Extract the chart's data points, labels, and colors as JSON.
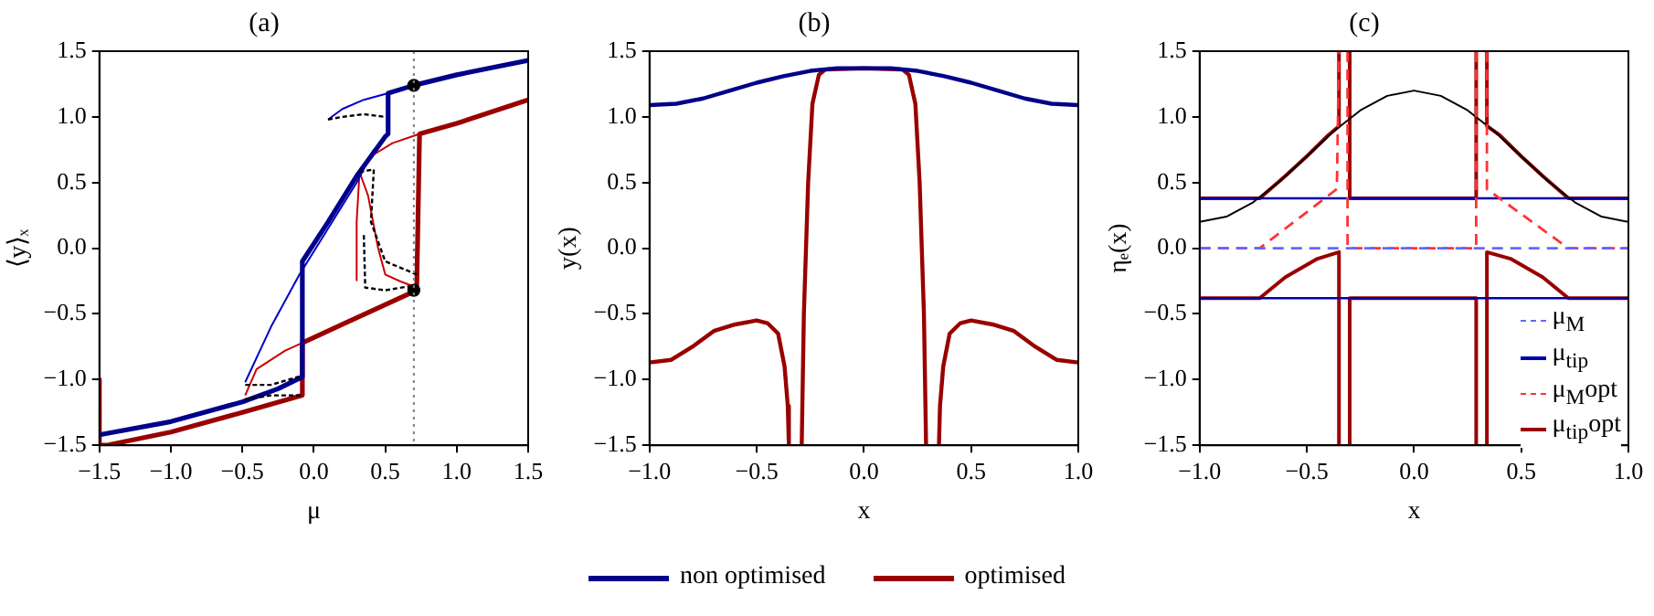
{
  "chart_data": [
    {
      "type": "line",
      "title": "(a)",
      "xlabel": "μ",
      "ylabel": "⟨y⟩ₓ",
      "xlim": [
        -1.5,
        1.5
      ],
      "ylim": [
        -1.5,
        1.5
      ],
      "xticks": [
        {
          "value": -1.5,
          "label": "−1.5"
        },
        {
          "value": -1,
          "label": "−1.0"
        },
        {
          "value": -0.5,
          "label": "−0.5"
        },
        {
          "value": 0,
          "label": "0.0"
        },
        {
          "value": 0.5,
          "label": "0.5"
        },
        {
          "value": 1,
          "label": "1.0"
        },
        {
          "value": 1.5,
          "label": "1.5"
        }
      ],
      "yticks": [
        {
          "value": -1.5,
          "label": "−1.5"
        },
        {
          "value": -1,
          "label": "−1.0"
        },
        {
          "value": -0.5,
          "label": "−0.5"
        },
        {
          "value": 0,
          "label": "0.0"
        },
        {
          "value": 0.5,
          "label": "0.5"
        },
        {
          "value": 1,
          "label": "1.0"
        },
        {
          "value": 1.5,
          "label": "1.5"
        }
      ],
      "legend": "bottom",
      "ref_lines": [
        {
          "axis": "x",
          "value": 0.7,
          "color": "#808080",
          "line_style": "dotted"
        }
      ],
      "series": [
        {
          "type": "scatter",
          "marker": "circle",
          "color": "#000000",
          "x": [
            0.7,
            0.7
          ],
          "values": [
            1.24,
            -0.32
          ]
        },
        {
          "name": "non optimised",
          "color": "#00008b",
          "x": [
            -1.5,
            -1.0,
            -0.5,
            -0.25,
            -0.08,
            -0.08,
            0.1,
            0.3,
            0.5,
            0.52,
            0.52,
            0.7,
            1.0,
            1.5
          ],
          "values": [
            -1.42,
            -1.32,
            -1.17,
            -1.07,
            -0.98,
            -0.1,
            0.2,
            0.55,
            0.85,
            0.87,
            1.18,
            1.24,
            1.32,
            1.43
          ]
        },
        {
          "name": "optimised",
          "color": "#990000",
          "x": [
            -1.5,
            -1.5,
            -1.45,
            -1.0,
            -0.5,
            -0.08,
            -0.08,
            0.2,
            0.5,
            0.72,
            0.74,
            1.0,
            1.5
          ],
          "values": [
            -1.0,
            -1.5,
            -1.5,
            -1.4,
            -1.25,
            -1.12,
            -0.72,
            -0.58,
            -0.43,
            -0.32,
            0.87,
            0.95,
            1.13
          ]
        },
        {
          "color": "#0000cc",
          "x": [
            -0.48,
            -0.3,
            -0.1,
            0.1,
            0.3,
            0.42
          ],
          "values": [
            -1.02,
            -0.6,
            -0.2,
            0.15,
            0.5,
            0.75
          ]
        },
        {
          "color": "#0000cc",
          "x": [
            0.1,
            0.2,
            0.35,
            0.52
          ],
          "values": [
            0.98,
            1.06,
            1.13,
            1.18
          ]
        },
        {
          "color": "#cc0000",
          "x": [
            -0.48,
            -0.4,
            -0.2,
            -0.08
          ],
          "values": [
            -1.12,
            -0.92,
            -0.78,
            -0.72
          ]
        },
        {
          "color": "#cc0000",
          "x": [
            0.3,
            0.3,
            0.32,
            0.4,
            0.55,
            0.74
          ],
          "values": [
            -0.25,
            0.2,
            0.58,
            0.7,
            0.8,
            0.87
          ]
        },
        {
          "color": "#cc0000",
          "x": [
            0.32,
            0.38,
            0.45,
            0.5,
            0.6,
            0.72
          ],
          "values": [
            0.58,
            0.4,
            0.0,
            -0.2,
            -0.25,
            -0.3
          ]
        },
        {
          "color": "#000000",
          "line_style": "dashed",
          "x": [
            0.1,
            0.2,
            0.35,
            0.5
          ],
          "values": [
            0.98,
            1.0,
            1.02,
            1.0
          ]
        },
        {
          "color": "#000000",
          "line_style": "dashed",
          "x": [
            -0.48,
            -0.3,
            -0.08
          ],
          "values": [
            -1.04,
            -1.04,
            -0.97
          ]
        },
        {
          "color": "#000000",
          "line_style": "dashed",
          "x": [
            -0.48,
            -0.3,
            -0.08
          ],
          "values": [
            -1.15,
            -1.12,
            -1.12
          ]
        },
        {
          "color": "#000000",
          "line_style": "dashed",
          "x": [
            0.32,
            0.42,
            0.4,
            0.5,
            0.72
          ],
          "values": [
            0.58,
            0.6,
            0.2,
            -0.1,
            -0.2
          ]
        },
        {
          "color": "#000000",
          "line_style": "dashed",
          "x": [
            0.35,
            0.36,
            0.5,
            0.72
          ],
          "values": [
            0.1,
            -0.3,
            -0.32,
            -0.28
          ]
        }
      ]
    },
    {
      "type": "line",
      "title": "(b)",
      "xlabel": "x",
      "ylabel": "y(x)",
      "xlim": [
        -1,
        1
      ],
      "ylim": [
        -1.5,
        1.5
      ],
      "xticks": [
        {
          "value": -1,
          "label": "−1.0"
        },
        {
          "value": -0.5,
          "label": "−0.5"
        },
        {
          "value": 0,
          "label": "0.0"
        },
        {
          "value": 0.5,
          "label": "0.5"
        },
        {
          "value": 1,
          "label": "1.0"
        }
      ],
      "yticks": [
        {
          "value": -1.5,
          "label": "−1.5"
        },
        {
          "value": -1,
          "label": "−1.0"
        },
        {
          "value": -0.5,
          "label": "−0.5"
        },
        {
          "value": 0,
          "label": "0.0"
        },
        {
          "value": 0.5,
          "label": "0.5"
        },
        {
          "value": 1,
          "label": "1.0"
        },
        {
          "value": 1.5,
          "label": "1.5"
        }
      ],
      "series": [
        {
          "color": "#00008b",
          "x": [
            -1,
            -0.875,
            -0.75,
            -0.625,
            -0.5,
            -0.375,
            -0.25,
            -0.125,
            0,
            0.125,
            0.25,
            0.375,
            0.5,
            0.625,
            0.75,
            0.875,
            1
          ],
          "values": [
            1.09,
            1.1,
            1.14,
            1.2,
            1.26,
            1.31,
            1.35,
            1.37,
            1.37,
            1.37,
            1.35,
            1.31,
            1.26,
            1.2,
            1.14,
            1.1,
            1.09
          ]
        },
        {
          "color": "#990000",
          "x": [
            -1,
            -0.9,
            -0.8,
            -0.7,
            -0.6,
            -0.5,
            -0.45,
            -0.4,
            -0.37,
            -0.355,
            -0.35,
            -0.32,
            -0.29,
            -0.28,
            -0.26,
            -0.24,
            -0.21,
            -0.18,
            0,
            0.18,
            0.21,
            0.24,
            0.26,
            0.28,
            0.29,
            0.32,
            0.35,
            0.355,
            0.37,
            0.4,
            0.45,
            0.5,
            0.6,
            0.7,
            0.8,
            0.9,
            1
          ],
          "values": [
            -0.87,
            -0.85,
            -0.75,
            -0.63,
            -0.58,
            -0.55,
            -0.57,
            -0.65,
            -0.9,
            -1.2,
            -1.5,
            null,
            -1.5,
            -0.5,
            0.5,
            1.1,
            1.32,
            1.36,
            1.37,
            1.36,
            1.32,
            1.1,
            0.5,
            -0.5,
            -1.5,
            null,
            -1.5,
            -1.2,
            -0.9,
            -0.65,
            -0.57,
            -0.55,
            -0.58,
            -0.63,
            -0.75,
            -0.85,
            -0.87
          ]
        }
      ]
    },
    {
      "type": "line",
      "title": "(c)",
      "xlabel": "x",
      "ylabel": "ηₑ(x)",
      "xlim": [
        -1,
        1
      ],
      "ylim": [
        -1.5,
        1.5
      ],
      "xticks": [
        {
          "value": -1,
          "label": "−1.0"
        },
        {
          "value": -0.5,
          "label": "−0.5"
        },
        {
          "value": 0,
          "label": "0.0"
        },
        {
          "value": 0.5,
          "label": "0.5"
        },
        {
          "value": 1,
          "label": "1.0"
        }
      ],
      "yticks": [
        {
          "value": -1.5,
          "label": "−1.5"
        },
        {
          "value": -1,
          "label": "−1.0"
        },
        {
          "value": -0.5,
          "label": "−0.5"
        },
        {
          "value": 0,
          "label": "0.0"
        },
        {
          "value": 0.5,
          "label": "0.5"
        },
        {
          "value": 1,
          "label": "1.0"
        },
        {
          "value": 1.5,
          "label": "1.5"
        }
      ],
      "legend": "bottom right",
      "series": [
        {
          "color": "#000000",
          "x": [
            -1,
            -0.875,
            -0.75,
            -0.625,
            -0.5,
            -0.375,
            -0.25,
            -0.125,
            0,
            0.125,
            0.25,
            0.375,
            0.5,
            0.625,
            0.75,
            0.875,
            1
          ],
          "values": [
            0.2,
            0.24,
            0.35,
            0.51,
            0.7,
            0.89,
            1.05,
            1.16,
            1.2,
            1.16,
            1.05,
            0.89,
            0.7,
            0.51,
            0.35,
            0.24,
            0.2
          ]
        },
        {
          "name": "μ$_{M}$",
          "color": "#6666ff",
          "line_style": "dashed",
          "x": [
            -1,
            1
          ],
          "values": [
            0,
            0
          ]
        },
        {
          "name": "μ$_{tip}$",
          "color": "#0000aa",
          "x": [
            -1,
            1
          ],
          "values": [
            0.38,
            0.38
          ]
        },
        {
          "color": "#0000aa",
          "x": [
            -1,
            1
          ],
          "values": [
            -0.38,
            -0.38
          ]
        },
        {
          "name": "μ$_{M}$opt",
          "color": "#ff3333",
          "line_style": "dashed",
          "x": [
            -1,
            -0.72,
            -0.36,
            -0.35,
            -0.33,
            -0.31,
            -0.31,
            0.29,
            0.29,
            0.31,
            0.34,
            0.34,
            0.72,
            1
          ],
          "values": [
            0,
            0,
            0.45,
            1.5,
            null,
            1.5,
            0,
            0,
            1.5,
            null,
            1.5,
            0.45,
            0,
            0
          ]
        },
        {
          "name": "μ$_{tip}$opt",
          "color": "#990000",
          "x": [
            -1,
            -0.72,
            -0.6,
            -0.5,
            -0.4,
            -0.35,
            -0.35,
            -0.33,
            -0.3,
            -0.3,
            0.29,
            0.29,
            0.31,
            0.34,
            0.34,
            0.4,
            0.5,
            0.6,
            0.72,
            1
          ],
          "values": [
            0.38,
            0.38,
            0.55,
            0.7,
            0.86,
            0.93,
            1.5,
            null,
            1.5,
            0.38,
            0.38,
            1.5,
            null,
            1.5,
            0.93,
            0.86,
            0.7,
            0.55,
            0.38,
            0.38
          ]
        },
        {
          "color": "#990000",
          "x": [
            -1,
            -0.72,
            -0.6,
            -0.45,
            -0.35,
            -0.35,
            -0.33,
            -0.3,
            -0.3,
            0.29,
            0.29,
            0.31,
            0.34,
            0.34,
            0.45,
            0.6,
            0.72,
            1
          ],
          "values": [
            -0.38,
            -0.38,
            -0.22,
            -0.08,
            -0.03,
            -1.5,
            null,
            -1.5,
            -0.38,
            -0.38,
            -1.5,
            null,
            -1.5,
            -0.03,
            -0.08,
            -0.22,
            -0.38,
            -0.38
          ]
        }
      ]
    }
  ]
}
